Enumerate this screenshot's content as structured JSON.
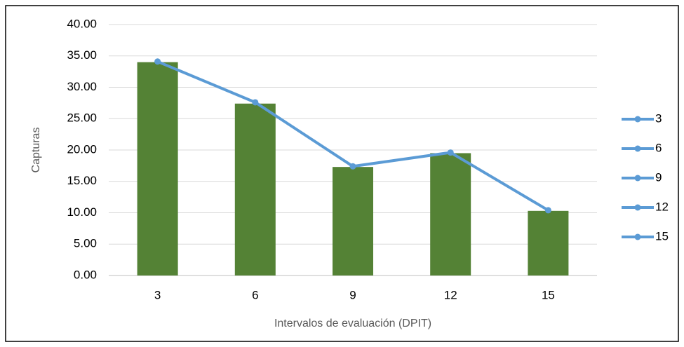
{
  "chart_data": {
    "type": "bar-line",
    "y_label": "Capturas",
    "x_label": "Intervalos de evaluación (DPIT)",
    "categories": [
      "3",
      "6",
      "9",
      "12",
      "15"
    ],
    "series": [
      {
        "type": "bar",
        "color": "#548235",
        "values": [
          34.0,
          27.4,
          17.3,
          19.5,
          10.3
        ]
      },
      {
        "type": "line",
        "color": "#5b9bd5",
        "values": [
          34.1,
          27.6,
          17.4,
          19.6,
          10.4
        ]
      }
    ],
    "ylim": [
      0,
      40
    ],
    "yticks": [
      {
        "value": 0,
        "label": "0.00"
      },
      {
        "value": 5,
        "label": "5.00"
      },
      {
        "value": 10,
        "label": "10.00"
      },
      {
        "value": 15,
        "label": "15.00"
      },
      {
        "value": 20,
        "label": "20.00"
      },
      {
        "value": 25,
        "label": "25.00"
      },
      {
        "value": 30,
        "label": "30.00"
      },
      {
        "value": 35,
        "label": "35.00"
      },
      {
        "value": 40,
        "label": "40.00"
      }
    ],
    "grid": true,
    "legend": "right"
  }
}
